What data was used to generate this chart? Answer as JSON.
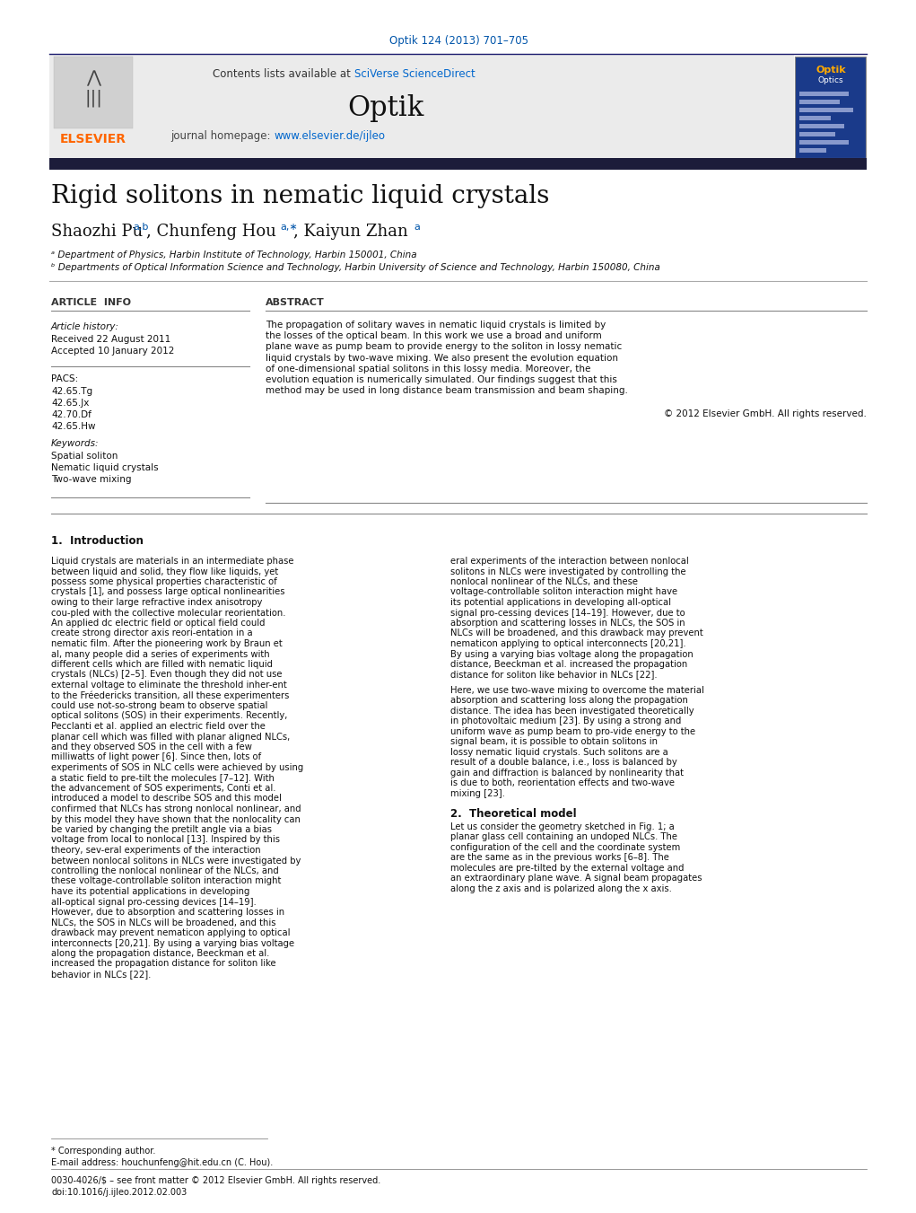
{
  "title": "Rigid solitons in nematic liquid crystals",
  "journal_ref": "Optik 124 (2013) 701–705",
  "journal_name": "Optik",
  "contents_line_plain": "Contents lists available at ",
  "contents_line_link": "SciVerse ScienceDirect",
  "journal_homepage_plain": "journal homepage: ",
  "journal_homepage_link": "www.elsevier.de/ijleo",
  "affil_a": "ᵃ Department of Physics, Harbin Institute of Technology, Harbin 150001, China",
  "affil_b": "ᵇ Departments of Optical Information Science and Technology, Harbin University of Science and Technology, Harbin 150080, China",
  "article_info_header": "ARTICLE  INFO",
  "abstract_header": "ABSTRACT",
  "article_history_label": "Article history:",
  "received": "Received 22 August 2011",
  "accepted": "Accepted 10 January 2012",
  "pacs_label": "PACS:",
  "pacs_codes": [
    "42.65.Tg",
    "42.65.Jx",
    "42.70.Df",
    "42.65.Hw"
  ],
  "keywords_label": "Keywords:",
  "keywords": [
    "Spatial soliton",
    "Nematic liquid crystals",
    "Two-wave mixing"
  ],
  "abstract_text": "The propagation of solitary waves in nematic liquid crystals is limited by the losses of the optical beam. In this work we use a broad and uniform plane wave as pump beam to provide energy to the soliton in lossy nematic liquid crystals by two-wave mixing. We also present the evolution equation of one-dimensional spatial solitons in this lossy media. Moreover, the evolution equation is numerically simulated. Our findings suggest that this method may be used in long distance beam transmission and beam shaping.",
  "copyright": "© 2012 Elsevier GmbH. All rights reserved.",
  "section1_title": "1.  Introduction",
  "section2_title": "2.  Theoretical model",
  "footnote_corresponding": "* Corresponding author.",
  "footnote_email": "E-mail address: houchunfeng@hit.edu.cn (C. Hou).",
  "footnote_issn": "0030-4026/$ – see front matter © 2012 Elsevier GmbH. All rights reserved.",
  "footnote_doi": "doi:10.1016/j.ijleo.2012.02.003",
  "bg_color": "#ffffff",
  "elsevier_orange": "#ff6600",
  "link_color": "#0066cc",
  "journal_ref_color": "#0055aa",
  "dark_bar_color": "#1c1c3a"
}
